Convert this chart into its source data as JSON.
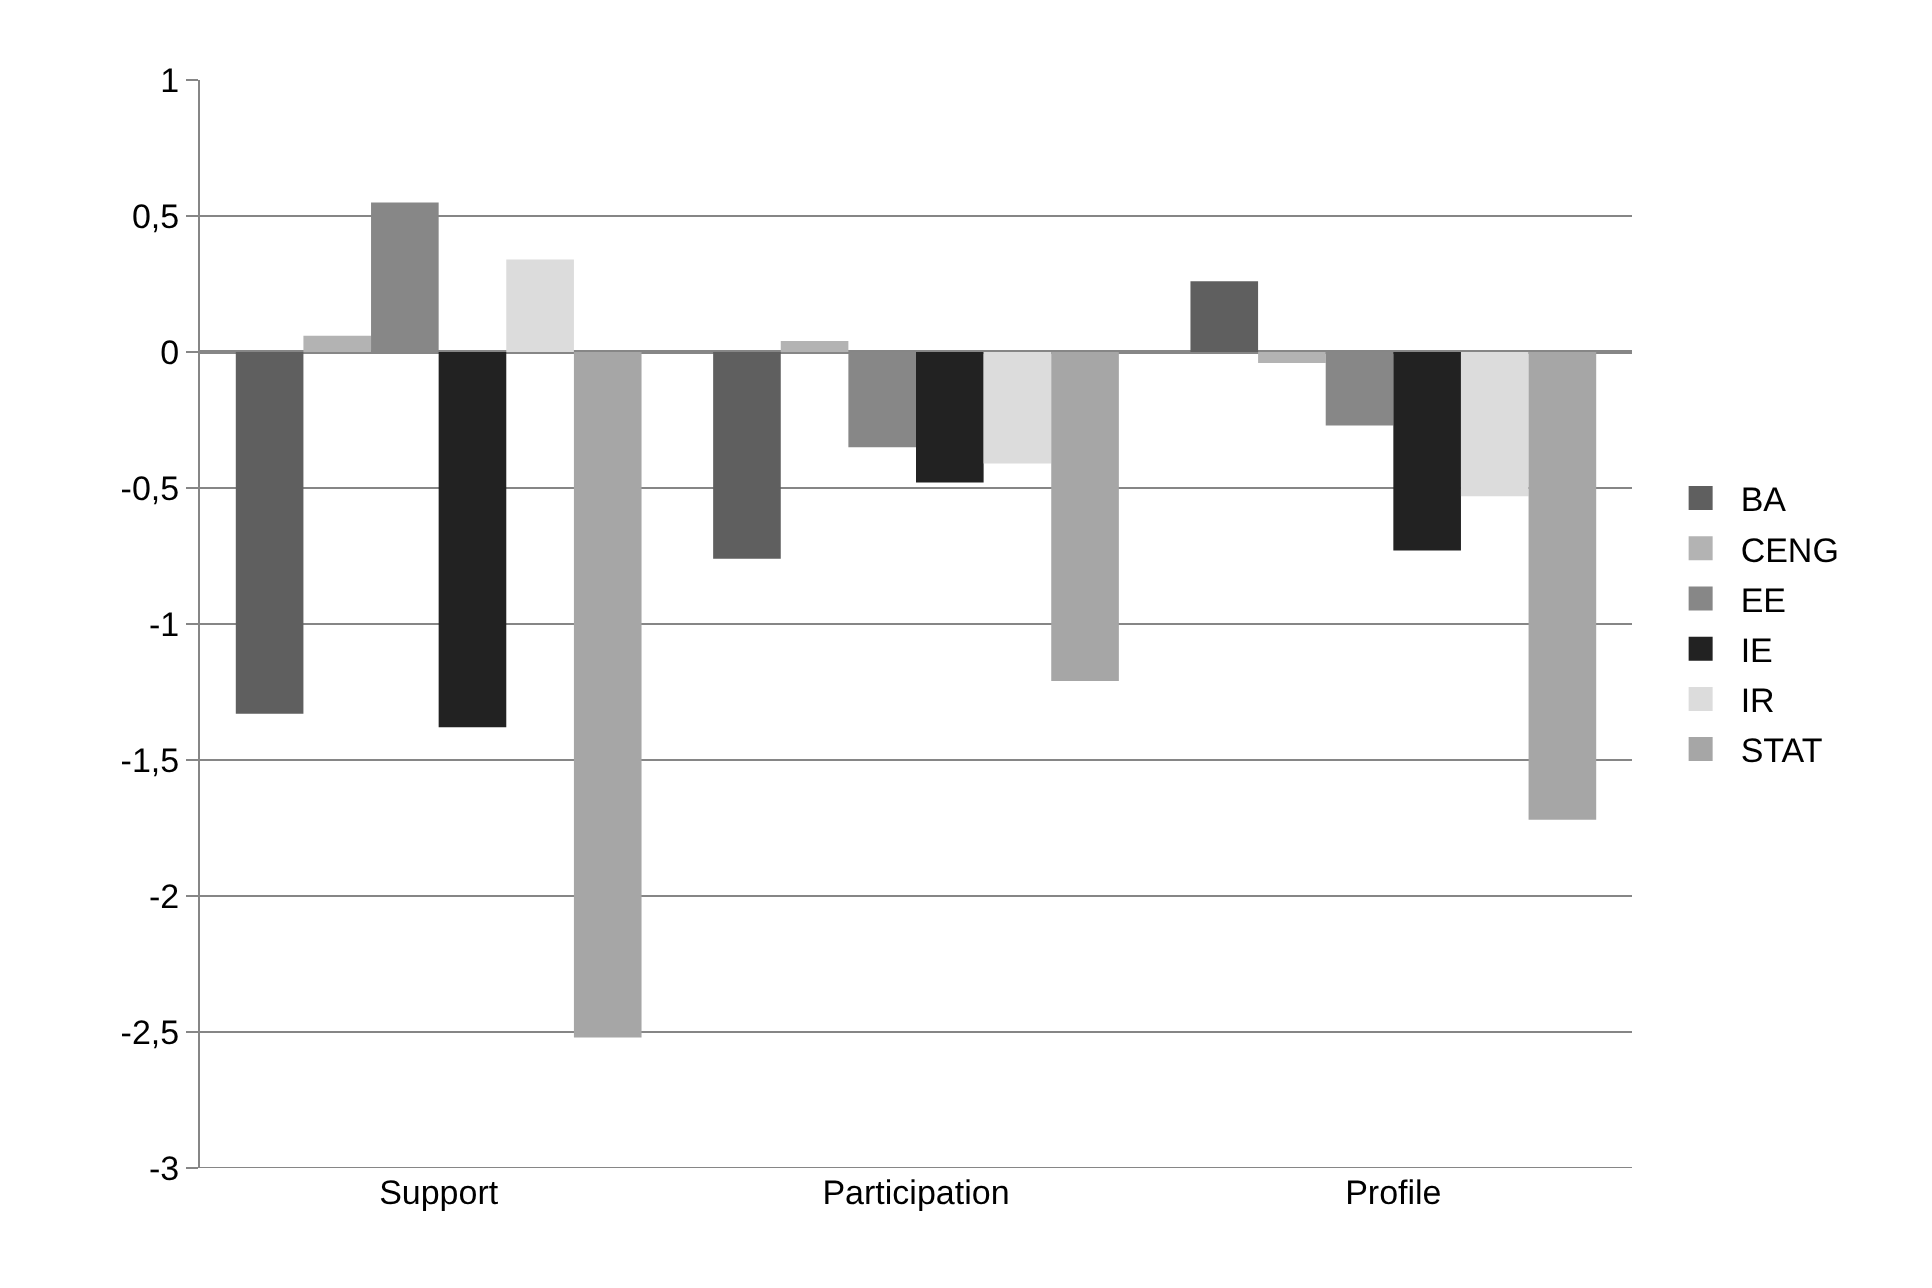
{
  "chart_data": {
    "type": "bar",
    "categories": [
      "Support",
      "Participation",
      "Profile"
    ],
    "series": [
      {
        "name": "BA",
        "color": "#5f5f5f",
        "values": [
          -1.33,
          -0.76,
          0.26
        ]
      },
      {
        "name": "CENG",
        "color": "#b3b3b3",
        "values": [
          0.06,
          0.04,
          -0.04
        ]
      },
      {
        "name": "EE",
        "color": "#878787",
        "values": [
          0.55,
          -0.35,
          -0.27
        ]
      },
      {
        "name": "IE",
        "color": "#222222",
        "values": [
          -1.38,
          -0.48,
          -0.73
        ]
      },
      {
        "name": "IR",
        "color": "#dcdcdc",
        "values": [
          0.34,
          -0.41,
          -0.53
        ]
      },
      {
        "name": "STAT",
        "color": "#a6a6a6",
        "values": [
          -2.52,
          -1.21,
          -1.72
        ]
      }
    ],
    "ylim": [
      -3,
      1
    ],
    "yticks": [
      {
        "value": -3,
        "label": "-3"
      },
      {
        "value": -2.5,
        "label": "-2,5"
      },
      {
        "value": -2,
        "label": "-2"
      },
      {
        "value": -1.5,
        "label": "-1,5"
      },
      {
        "value": -1,
        "label": "-1"
      },
      {
        "value": -0.5,
        "label": "-0,5"
      },
      {
        "value": 0,
        "label": "0"
      },
      {
        "value": 0.5,
        "label": "0,5"
      },
      {
        "value": 1,
        "label": "1"
      }
    ],
    "grid": "y",
    "legend": "right"
  }
}
